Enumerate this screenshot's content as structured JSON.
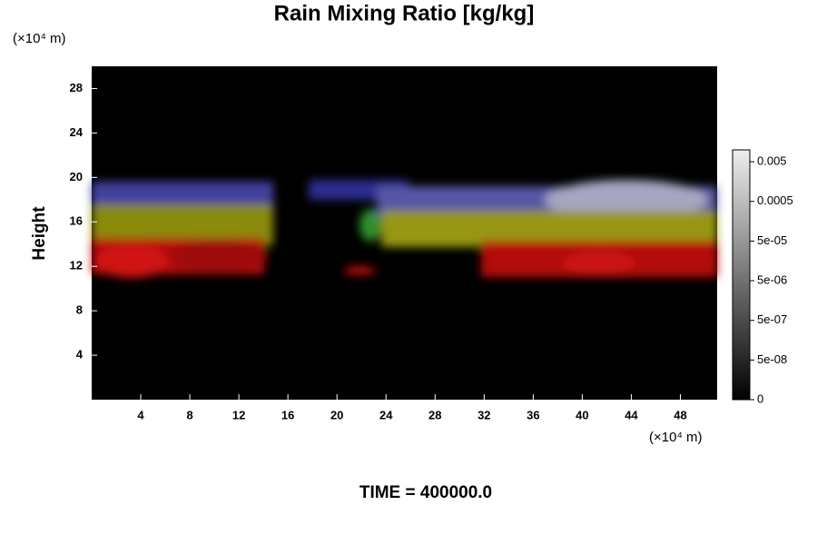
{
  "chart_data": {
    "type": "heatmap",
    "title": "Rain Mixing Ratio [kg/kg]",
    "ylabel": "Height",
    "x_unit": "(×10⁴ m)",
    "y_unit": "(×10⁴ m)",
    "annotation": "TIME = 400000.0",
    "xlim": [
      0,
      51
    ],
    "xticks": [
      4,
      8,
      12,
      16,
      20,
      24,
      28,
      32,
      36,
      40,
      44,
      48
    ],
    "ylim": [
      0,
      30
    ],
    "yticks": [
      4,
      8,
      12,
      16,
      20,
      24,
      28
    ],
    "colorbar_ticks": [
      0,
      {
        "value": 5e-08,
        "label": "5e-08"
      },
      {
        "value": 5e-07,
        "label": "5e-07"
      },
      {
        "value": 5e-06,
        "label": "5e-06"
      },
      {
        "value": 5e-05,
        "label": "5e-05"
      },
      0.0005,
      0.005
    ]
  }
}
